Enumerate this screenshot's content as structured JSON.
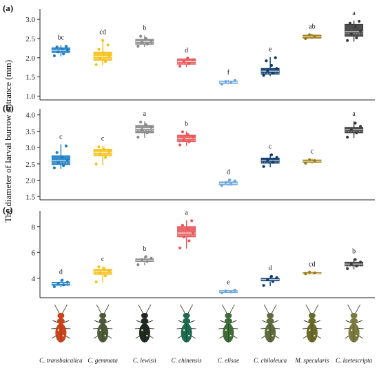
{
  "ylabel": "The diameter of larval burrow entrance (mm)",
  "species": [
    {
      "name": "C. transbaicalica",
      "color": "#1f7fc4",
      "body": "#c8431e"
    },
    {
      "name": "C. gemmata",
      "color": "#f6c21c",
      "body": "#4d5a3a"
    },
    {
      "name": "C. lewisii",
      "color": "#8a8a8a",
      "body": "#1f2a22"
    },
    {
      "name": "C. chinensis",
      "color": "#e8575a",
      "body": "#1c6a50"
    },
    {
      "name": "C. elisae",
      "color": "#6fa8dc",
      "body": "#3d6b3a"
    },
    {
      "name": "C. chiloleuca",
      "color": "#0d3b6e",
      "body": "#5d6b3f"
    },
    {
      "name": "M. specularis",
      "color": "#9c7b12",
      "body": "#6a6a2a"
    },
    {
      "name": "C. laetescripta",
      "color": "#3b3b3b",
      "body": "#7b7a40"
    }
  ],
  "chart_data": [
    {
      "panel": "(a)",
      "type": "boxplot",
      "ylim": [
        0.9,
        3.2
      ],
      "yticks": [
        "1.0",
        "1.5",
        "2.0",
        "2.5",
        "3.0"
      ],
      "letters": [
        "bc",
        "cd",
        "b",
        "d",
        "f",
        "e",
        "ab",
        "a"
      ],
      "series": [
        {
          "q1": 2.13,
          "median": 2.19,
          "q3": 2.26,
          "min": 2.03,
          "max": 2.33,
          "points": [
            2.05,
            2.1,
            2.15,
            2.2,
            2.23,
            2.28,
            2.3
          ]
        },
        {
          "q1": 1.93,
          "median": 2.03,
          "q3": 2.15,
          "min": 1.8,
          "max": 2.47,
          "points": [
            1.82,
            1.9,
            1.98,
            2.05,
            2.12,
            2.22,
            2.33,
            2.45
          ]
        },
        {
          "q1": 2.35,
          "median": 2.42,
          "q3": 2.48,
          "min": 2.28,
          "max": 2.58,
          "points": [
            2.3,
            2.36,
            2.4,
            2.44,
            2.5,
            2.56
          ]
        },
        {
          "q1": 1.83,
          "median": 1.9,
          "q3": 1.97,
          "min": 1.76,
          "max": 2.0,
          "points": [
            1.78,
            1.85,
            1.9,
            1.95,
            1.99
          ]
        },
        {
          "q1": 1.33,
          "median": 1.36,
          "q3": 1.39,
          "min": 1.3,
          "max": 1.42,
          "points": [
            1.31,
            1.35,
            1.38,
            1.41
          ]
        },
        {
          "q1": 1.57,
          "median": 1.65,
          "q3": 1.72,
          "min": 1.52,
          "max": 2.02,
          "points": [
            1.54,
            1.6,
            1.66,
            1.72,
            1.8,
            1.92,
            2.0
          ]
        },
        {
          "q1": 2.51,
          "median": 2.55,
          "q3": 2.59,
          "min": 2.48,
          "max": 2.62,
          "points": [
            2.5,
            2.56,
            2.6
          ]
        },
        {
          "q1": 2.56,
          "median": 2.68,
          "q3": 2.87,
          "min": 2.42,
          "max": 2.97,
          "points": [
            2.45,
            2.52,
            2.62,
            2.7,
            2.8,
            2.9,
            2.95
          ]
        }
      ]
    },
    {
      "panel": "(b)",
      "type": "boxplot",
      "ylim": [
        1.4,
        4.1
      ],
      "yticks": [
        "1.5",
        "2.0",
        "2.5",
        "3.0",
        "3.5",
        "4.0"
      ],
      "letters": [
        "c",
        "c",
        "a",
        "b",
        "d",
        "c",
        "c",
        "a"
      ],
      "series": [
        {
          "q1": 2.48,
          "median": 2.6,
          "q3": 2.75,
          "min": 2.35,
          "max": 3.1,
          "points": [
            2.38,
            2.45,
            2.55,
            2.62,
            2.7,
            2.85,
            3.05
          ]
        },
        {
          "q1": 2.75,
          "median": 2.85,
          "q3": 2.95,
          "min": 2.45,
          "max": 3.05,
          "points": [
            2.5,
            2.7,
            2.8,
            2.88,
            2.95,
            3.02
          ]
        },
        {
          "q1": 3.45,
          "median": 3.58,
          "q3": 3.68,
          "min": 3.3,
          "max": 3.8,
          "points": [
            3.32,
            3.45,
            3.55,
            3.62,
            3.7,
            3.78
          ]
        },
        {
          "q1": 3.18,
          "median": 3.28,
          "q3": 3.38,
          "min": 3.05,
          "max": 3.5,
          "points": [
            3.08,
            3.18,
            3.25,
            3.32,
            3.4,
            3.48
          ]
        },
        {
          "q1": 1.86,
          "median": 1.9,
          "q3": 1.95,
          "min": 1.82,
          "max": 2.02,
          "points": [
            1.84,
            1.88,
            1.93,
            1.98,
            2.01
          ]
        },
        {
          "q1": 2.52,
          "median": 2.6,
          "q3": 2.68,
          "min": 2.4,
          "max": 2.8,
          "points": [
            2.42,
            2.55,
            2.62,
            2.7,
            2.78
          ]
        },
        {
          "q1": 2.55,
          "median": 2.58,
          "q3": 2.62,
          "min": 2.5,
          "max": 2.65,
          "points": [
            2.52,
            2.6,
            2.63
          ]
        },
        {
          "q1": 3.45,
          "median": 3.55,
          "q3": 3.62,
          "min": 3.3,
          "max": 3.8,
          "points": [
            3.32,
            3.45,
            3.55,
            3.65,
            3.75
          ]
        }
      ]
    },
    {
      "panel": "(c)",
      "type": "boxplot",
      "ylim": [
        2.5,
        9.0
      ],
      "yticks": [
        "4",
        "6",
        "8"
      ],
      "letters": [
        "d",
        "c",
        "b",
        "a",
        "e",
        "d",
        "cd",
        "b"
      ],
      "series": [
        {
          "q1": 3.45,
          "median": 3.6,
          "q3": 3.7,
          "min": 3.3,
          "max": 3.9,
          "points": [
            3.35,
            3.5,
            3.6,
            3.7,
            3.85
          ]
        },
        {
          "q1": 4.3,
          "median": 4.5,
          "q3": 4.7,
          "min": 3.7,
          "max": 4.9,
          "points": [
            3.72,
            4.2,
            4.4,
            4.55,
            4.75,
            4.88
          ]
        },
        {
          "q1": 5.3,
          "median": 5.4,
          "q3": 5.5,
          "min": 5.0,
          "max": 5.7,
          "points": [
            5.05,
            5.3,
            5.45,
            5.55,
            5.68
          ]
        },
        {
          "q1": 7.2,
          "median": 7.5,
          "q3": 8.0,
          "min": 6.3,
          "max": 8.5,
          "points": [
            6.35,
            6.9,
            7.2,
            7.5,
            7.8,
            8.1,
            8.45
          ]
        },
        {
          "q1": 2.9,
          "median": 3.0,
          "q3": 3.05,
          "min": 2.85,
          "max": 3.1,
          "points": [
            2.88,
            2.95,
            3.02,
            3.08
          ]
        },
        {
          "q1": 3.8,
          "median": 3.9,
          "q3": 4.0,
          "min": 3.4,
          "max": 4.2,
          "points": [
            3.45,
            3.75,
            3.9,
            4.05,
            4.15
          ]
        },
        {
          "q1": 4.35,
          "median": 4.4,
          "q3": 4.45,
          "min": 4.3,
          "max": 4.5,
          "points": [
            4.35,
            4.42,
            4.48
          ]
        },
        {
          "q1": 4.95,
          "median": 5.1,
          "q3": 5.25,
          "min": 4.7,
          "max": 5.5,
          "points": [
            4.75,
            4.95,
            5.1,
            5.25,
            5.45
          ]
        }
      ]
    }
  ]
}
